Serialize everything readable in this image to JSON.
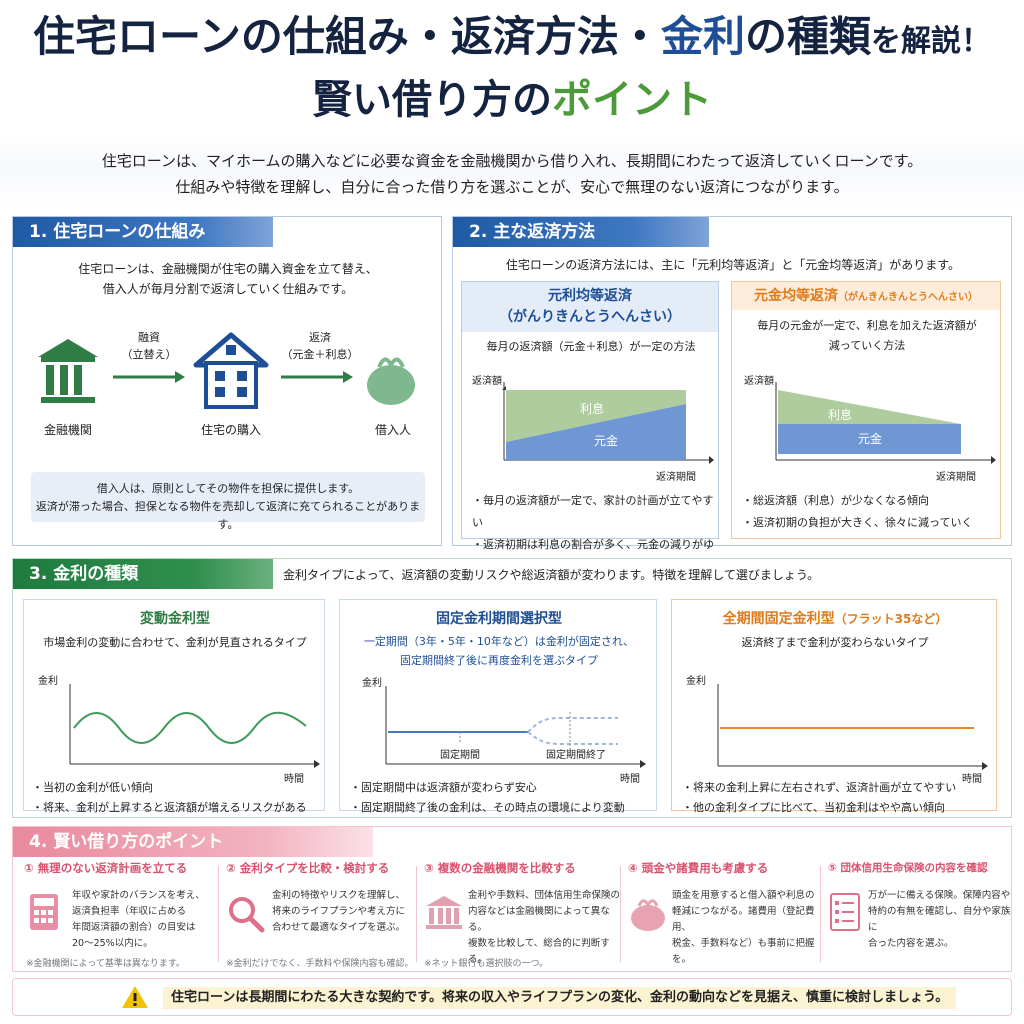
{
  "title": {
    "line1_a": "住宅ローンの仕組み・返済方法・",
    "line1_b": "金利",
    "line1_c": "の種類",
    "line1_d": "を解説！",
    "line2_a": "賢い借り方の",
    "line2_b": "ポイント"
  },
  "intro": {
    "line1": "住宅ローンは、マイホームの購入などに必要な資金を金融機関から借り入れ、長期間にわたって返済していくローンです。",
    "line2": "仕組みや特徴を理解し、自分に合った借り方を選ぶことが、安心で無理のない返済につながります。"
  },
  "section1": {
    "heading": "1. 住宅ローンの仕組み",
    "desc1": "住宅ローンは、金融機関が住宅の購入資金を立て替え、",
    "desc2": "借入人が毎月分割で返済していく仕組みです。",
    "bank_label": "金融機関",
    "house_label": "住宅の購入",
    "borrower_label": "借入人",
    "arrow1_top": "融資",
    "arrow1_bottom": "（立替え）",
    "arrow2_top": "返済",
    "arrow2_bottom": "（元金＋利息）",
    "note1": "借入人は、原則としてその物件を担保に提供します。",
    "note2": "返済が滞った場合、担保となる物件を売却して返済に充てられることがあります。"
  },
  "section2": {
    "heading": "2. 主な返済方法",
    "desc": "住宅ローンの返済方法には、主に「元利均等返済」と「元金均等返済」があります。",
    "card1": {
      "title": "元利均等返済",
      "reading": "（がんりきんとうへんさい）",
      "desc": "毎月の返済額（元金＋利息）が一定の方法",
      "ylabel": "返済額",
      "xlabel": "返済期間",
      "interest": "利息",
      "principal": "元金",
      "bullet1": "・毎月の返済額が一定で、家計の計画が立てやすい",
      "bullet2": "・返済初期は利息の割合が多く、元金の減りがゆるやか"
    },
    "card2": {
      "title": "元金均等返済",
      "reading": "（がんきんきんとうへんさい）",
      "desc1": "毎月の元金が一定で、利息を加えた返済額が",
      "desc2": "減っていく方法",
      "ylabel": "返済額",
      "xlabel": "返済期間",
      "interest": "利息",
      "principal": "元金",
      "bullet1": "・総返済額（利息）が少なくなる傾向",
      "bullet2": "・返済初期の負担が大きく、徐々に減っていく"
    }
  },
  "section3": {
    "heading": "3. 金利の種類",
    "desc": "金利タイプによって、返済額の変動リスクや総返済額が変わります。特徴を理解して選びましょう。",
    "card1": {
      "title": "変動金利型",
      "desc": "市場金利の変動に合わせて、金利が見直されるタイプ",
      "ylabel": "金利",
      "xlabel": "時間",
      "bullet1": "・当初の金利が低い傾向",
      "bullet2": "・将来、金利が上昇すると返済額が増えるリスクがある"
    },
    "card2": {
      "title": "固定金利期間選択型",
      "desc1": "一定期間（3年・5年・10年など）は金利が固定され、",
      "desc2": "固定期間終了後に再度金利を選ぶタイプ",
      "ylabel": "金利",
      "xlabel": "時間",
      "mark1": "固定期間",
      "mark2": "固定期間終了",
      "bullet1": "・固定期間中は返済額が変わらず安心",
      "bullet2": "・固定期間終了後の金利は、その時点の環境により変動"
    },
    "card3": {
      "title": "全期間固定金利型",
      "title_sub": "（フラット35など）",
      "desc": "返済終了まで金利が変わらないタイプ",
      "ylabel": "金利",
      "xlabel": "時間",
      "bullet1": "・将来の金利上昇に左右されず、返済計画が立てやすい",
      "bullet2": "・他の金利タイプに比べて、当初金利はやや高い傾向"
    }
  },
  "section4": {
    "heading": "4. 賢い借り方のポイント",
    "points": [
      {
        "title": "① 無理のない返済計画を立てる",
        "lines": [
          "年収や家計のバランスを考え、",
          "返済負担率（年収に占める",
          "年間返済額の割合）の目安は",
          "20〜25%以内に。"
        ],
        "note": "※金融機関によって基準は異なります。"
      },
      {
        "title": "② 金利タイプを比較・検討する",
        "lines": [
          "金利の特徴やリスクを理解し、",
          "将来のライフプランや考え方に",
          "合わせて最適なタイプを選ぶ。"
        ],
        "note": "※金利だけでなく、手数料や保険内容も確認。"
      },
      {
        "title": "③ 複数の金融機関を比較する",
        "lines": [
          "金利や手数料、団体信用生命保険の",
          "内容などは金融機関によって異なる。",
          "複数を比較して、総合的に判断する。"
        ],
        "note": "※ネット銀行も選択肢の一つ。"
      },
      {
        "title": "④ 頭金や諸費用も考慮する",
        "lines": [
          "頭金を用意すると借入額や利息の",
          "軽減につながる。諸費用（登記費用、",
          "税金、手数料など）も事前に把握を。"
        ],
        "note": ""
      },
      {
        "title": "⑤ 団体信用生命保険の内容を確認",
        "lines": [
          "万が一に備える保険。保障内容や",
          "特約の有無を確認し、自分や家族に",
          "合った内容を選ぶ。"
        ],
        "note": ""
      }
    ]
  },
  "footer": {
    "text": "住宅ローンは長期間にわたる大きな契約です。将来の収入やライフプランの変化、金利の動向などを見据え、慎重に検討しましょう。"
  },
  "colors": {
    "navy": "#14233f",
    "blue": "#1e4f96",
    "green": "#4c9a3a",
    "orange": "#e07b1a",
    "pink": "#d9536f"
  }
}
